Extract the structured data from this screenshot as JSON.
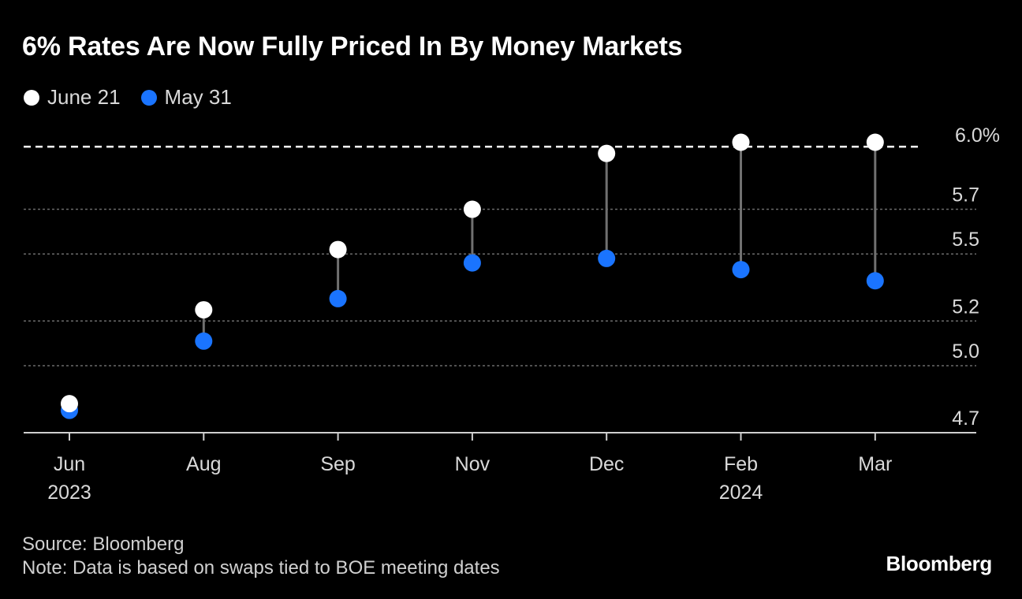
{
  "colors": {
    "background": "#000000",
    "june": "#ffffff",
    "may": "#1a74ff",
    "connector": "#707070",
    "grid": "#6b6b6b",
    "text": "#d9d9d9"
  },
  "legend": [
    {
      "label": "June 21",
      "color": "#ffffff"
    },
    {
      "label": "May 31",
      "color": "#1a74ff"
    }
  ],
  "footer": {
    "source": "Source: Bloomberg",
    "note": "Note: Data is based on swaps tied to BOE meeting dates"
  },
  "brand": "Bloomberg",
  "chart_data": {
    "type": "dumbbell",
    "title": "6% Rates Are Now Fully Priced In By Money Markets",
    "categories": [
      "Jun",
      "Aug",
      "Sep",
      "Nov",
      "Dec",
      "Feb",
      "Mar"
    ],
    "year_labels": [
      "2023",
      "",
      "",
      "",
      "",
      "2024",
      ""
    ],
    "series": [
      {
        "name": "June 21",
        "values": [
          4.83,
          5.25,
          5.52,
          5.7,
          5.95,
          6.0,
          6.0
        ]
      },
      {
        "name": "May 31",
        "values": [
          4.8,
          5.11,
          5.3,
          5.46,
          5.48,
          5.43,
          5.38
        ]
      }
    ],
    "reference_line": {
      "value": 5.98,
      "label": "6.0%"
    },
    "y_ticks": [
      {
        "value": 4.7,
        "label": "4.7"
      },
      {
        "value": 5.0,
        "label": "5.0"
      },
      {
        "value": 5.2,
        "label": "5.2"
      },
      {
        "value": 5.5,
        "label": "5.5"
      },
      {
        "value": 5.7,
        "label": "5.7"
      }
    ],
    "ylim": [
      4.7,
      6.03
    ]
  }
}
